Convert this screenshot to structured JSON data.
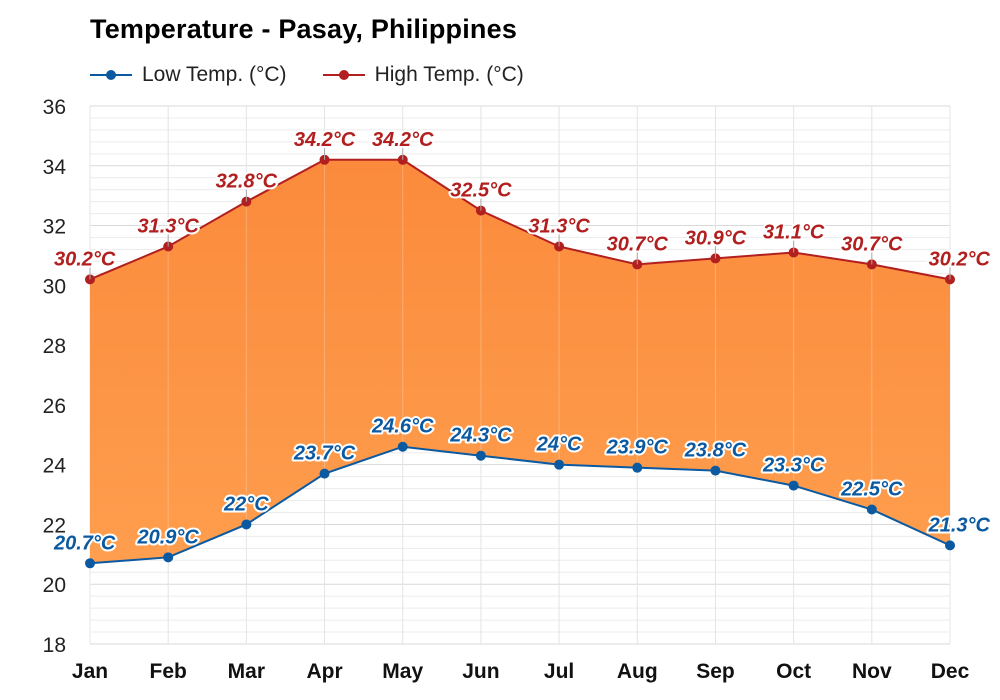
{
  "chart_data": {
    "type": "line",
    "title": "Temperature - Pasay, Philippines",
    "categories": [
      "Jan",
      "Feb",
      "Mar",
      "Apr",
      "May",
      "Jun",
      "Jul",
      "Aug",
      "Sep",
      "Oct",
      "Nov",
      "Dec"
    ],
    "series": [
      {
        "name": "Low Temp. (°C)",
        "color": "#0b5aa1",
        "values": [
          20.7,
          20.9,
          22,
          23.7,
          24.6,
          24.3,
          24,
          23.9,
          23.8,
          23.3,
          22.5,
          21.3
        ],
        "labels": [
          "20.7°C",
          "20.9°C",
          "22°C",
          "23.7°C",
          "24.6°C",
          "24.3°C",
          "24°C",
          "23.9°C",
          "23.8°C",
          "23.3°C",
          "22.5°C",
          "21.3°C"
        ]
      },
      {
        "name": "High Temp. (°C)",
        "color": "#b21f1f",
        "values": [
          30.2,
          31.3,
          32.8,
          34.2,
          34.2,
          32.5,
          31.3,
          30.7,
          30.9,
          31.1,
          30.7,
          30.2
        ],
        "labels": [
          "30.2°C",
          "31.3°C",
          "32.8°C",
          "34.2°C",
          "34.2°C",
          "32.5°C",
          "31.3°C",
          "30.7°C",
          "30.9°C",
          "31.1°C",
          "30.7°C",
          "30.2°C"
        ]
      }
    ],
    "yticks": [
      "18",
      "20",
      "22",
      "24",
      "26",
      "28",
      "30",
      "32",
      "34",
      "36"
    ],
    "ylim": [
      18,
      36
    ],
    "fill_color": "#fc9a49",
    "grid": true,
    "legend_position": "top-left"
  }
}
